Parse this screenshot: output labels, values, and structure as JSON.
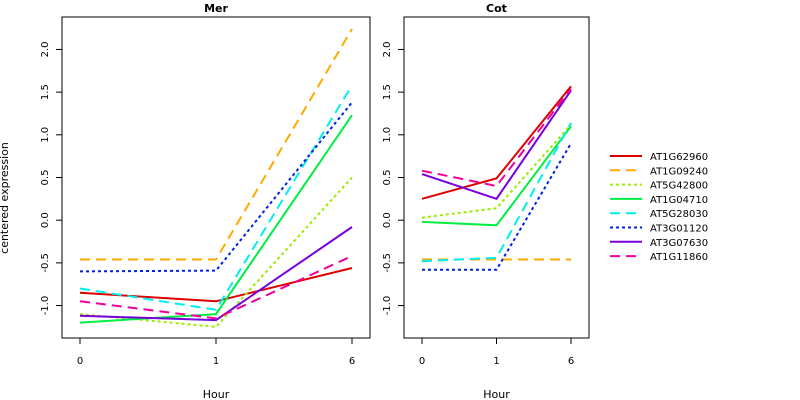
{
  "chart_data": {
    "type": "line",
    "ylabel": "centered expression",
    "xlabel": "Hour",
    "categories": [
      "0",
      "1",
      "6"
    ],
    "ylim": [
      -1.38,
      2.38
    ],
    "yticks": [
      -1.0,
      -0.5,
      0.0,
      0.5,
      1.0,
      1.5,
      2.0
    ],
    "ytick_labels": [
      "-1.0",
      "-0.5",
      "0.0",
      "0.5",
      "1.0",
      "1.5",
      "2.0"
    ],
    "grid": false,
    "legend_position": "right",
    "panels": [
      {
        "title": "Mer",
        "series": [
          {
            "name": "AT1G62960",
            "values": [
              -0.85,
              -0.95,
              -0.56
            ]
          },
          {
            "name": "AT1G09240",
            "values": [
              -0.46,
              -0.46,
              2.24
            ]
          },
          {
            "name": "AT5G42800",
            "values": [
              -1.1,
              -1.25,
              0.5
            ]
          },
          {
            "name": "AT1G04710",
            "values": [
              -1.2,
              -1.1,
              1.23
            ]
          },
          {
            "name": "AT5G28030",
            "values": [
              -0.8,
              -1.05,
              1.58
            ]
          },
          {
            "name": "AT3G01120",
            "values": [
              -0.6,
              -0.59,
              1.38
            ]
          },
          {
            "name": "AT3G07630",
            "values": [
              -1.12,
              -1.17,
              -0.08
            ]
          },
          {
            "name": "AT1G11860",
            "values": [
              -0.95,
              -1.15,
              -0.42
            ]
          }
        ]
      },
      {
        "title": "Cot",
        "series": [
          {
            "name": "AT1G62960",
            "values": [
              0.25,
              0.49,
              1.57
            ]
          },
          {
            "name": "AT1G09240",
            "values": [
              -0.46,
              -0.46,
              -0.46
            ]
          },
          {
            "name": "AT5G42800",
            "values": [
              0.03,
              0.14,
              1.12
            ]
          },
          {
            "name": "AT1G04710",
            "values": [
              -0.02,
              -0.06,
              1.1
            ]
          },
          {
            "name": "AT5G28030",
            "values": [
              -0.48,
              -0.44,
              1.14
            ]
          },
          {
            "name": "AT3G01120",
            "values": [
              -0.58,
              -0.58,
              0.9
            ]
          },
          {
            "name": "AT3G07630",
            "values": [
              0.54,
              0.25,
              1.52
            ]
          },
          {
            "name": "AT1G11860",
            "values": [
              0.58,
              0.4,
              1.54
            ]
          }
        ]
      }
    ],
    "legend": [
      {
        "name": "AT1G62960",
        "color": "#dd0000",
        "dash": "solid"
      },
      {
        "name": "AT1G09240",
        "color": "#ffaa00",
        "dash": "long-dash"
      },
      {
        "name": "AT5G42800",
        "color": "#99ee00",
        "dash": "dotted"
      },
      {
        "name": "AT1G04710",
        "color": "#00ee44",
        "dash": "solid"
      },
      {
        "name": "AT5G28030",
        "color": "#00eeee",
        "dash": "long-dash"
      },
      {
        "name": "AT3G01120",
        "color": "#0022dd",
        "dash": "dotted"
      },
      {
        "name": "AT3G07630",
        "color": "#7700dd",
        "dash": "solid"
      },
      {
        "name": "AT1G11860",
        "color": "#ee0099",
        "dash": "long-dash"
      }
    ]
  }
}
